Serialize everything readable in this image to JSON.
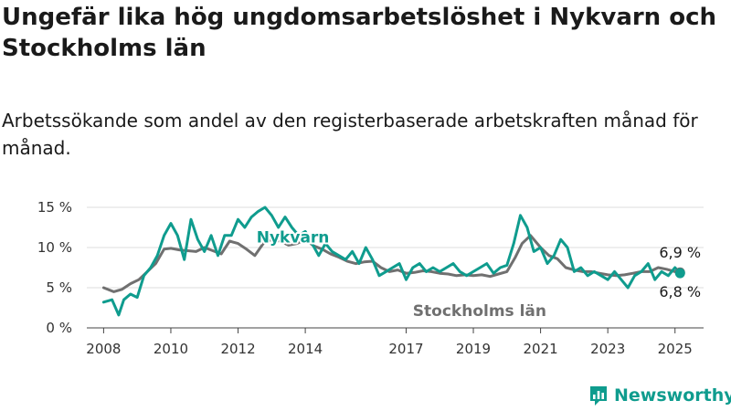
{
  "title": "Ungefär lika hög ungdomsarbetslöshet i Nykvarn och Stockholms län",
  "subtitle": "Arbetssökande som andel av den registerbaserade arbetskraften månad för månad.",
  "brand": {
    "name": "Newsworthy",
    "icon": "newsworthy-logo-icon",
    "color": "#0f9c8e"
  },
  "chart_data": {
    "type": "line",
    "x_unit": "year",
    "xlim": [
      2007.5,
      2025.85
    ],
    "ylim": [
      0,
      15
    ],
    "x_ticks": [
      2008,
      2010,
      2012,
      2014,
      2017,
      2019,
      2021,
      2023,
      2025
    ],
    "y_ticks": [
      0,
      5,
      10,
      15
    ],
    "y_tick_labels": [
      "0 %",
      "5 %",
      "10 %",
      "15 %"
    ],
    "grid": "horizontal",
    "legend": "inline labels",
    "series": [
      {
        "name": "Stockholms län",
        "color": "#707070",
        "x": [
          2008.0,
          2008.3,
          2008.55,
          2008.8,
          2009.05,
          2009.3,
          2009.55,
          2009.8,
          2010.0,
          2010.25,
          2010.5,
          2010.75,
          2011.0,
          2011.25,
          2011.5,
          2011.75,
          2012.0,
          2012.25,
          2012.5,
          2012.75,
          2013.0,
          2013.25,
          2013.5,
          2013.75,
          2014.0,
          2014.25,
          2014.5,
          2014.75,
          2015.0,
          2015.25,
          2015.5,
          2015.75,
          2016.0,
          2016.25,
          2016.5,
          2016.75,
          2017.0,
          2017.25,
          2017.5,
          2017.75,
          2018.0,
          2018.25,
          2018.5,
          2018.75,
          2019.0,
          2019.25,
          2019.5,
          2019.75,
          2020.0,
          2020.25,
          2020.45,
          2020.7,
          2021.0,
          2021.25,
          2021.5,
          2021.75,
          2022.0,
          2022.25,
          2022.5,
          2022.75,
          2023.0,
          2023.25,
          2023.5,
          2023.75,
          2024.0,
          2024.25,
          2024.5,
          2024.75,
          2025.0,
          2025.15
        ],
        "y": [
          5.0,
          4.5,
          4.8,
          5.5,
          6.0,
          7.0,
          8.0,
          9.8,
          9.9,
          9.7,
          9.6,
          9.5,
          10.0,
          9.6,
          9.2,
          10.8,
          10.5,
          9.8,
          9.0,
          10.5,
          11.0,
          10.8,
          10.3,
          10.5,
          11.0,
          10.2,
          9.8,
          9.2,
          8.8,
          8.3,
          8.0,
          8.2,
          8.3,
          7.5,
          7.0,
          7.2,
          6.8,
          6.9,
          7.1,
          7.0,
          6.8,
          6.7,
          6.5,
          6.6,
          6.5,
          6.6,
          6.4,
          6.7,
          7.0,
          8.8,
          10.5,
          11.5,
          10.0,
          9.0,
          8.6,
          7.5,
          7.2,
          7.0,
          7.0,
          6.8,
          6.6,
          6.5,
          6.6,
          6.8,
          7.0,
          7.0,
          7.5,
          7.3,
          7.0,
          6.9
        ]
      },
      {
        "name": "Nykvarn",
        "color": "#0f9c8e",
        "x": [
          2008.0,
          2008.25,
          2008.45,
          2008.6,
          2008.8,
          2009.0,
          2009.2,
          2009.4,
          2009.6,
          2009.8,
          2010.0,
          2010.2,
          2010.4,
          2010.6,
          2010.8,
          2011.0,
          2011.2,
          2011.4,
          2011.6,
          2011.8,
          2012.0,
          2012.2,
          2012.4,
          2012.6,
          2012.8,
          2013.0,
          2013.2,
          2013.4,
          2013.6,
          2013.8,
          2014.0,
          2014.2,
          2014.4,
          2014.6,
          2014.8,
          2015.0,
          2015.2,
          2015.4,
          2015.6,
          2015.8,
          2016.0,
          2016.2,
          2016.4,
          2016.6,
          2016.8,
          2017.0,
          2017.2,
          2017.4,
          2017.6,
          2017.8,
          2018.0,
          2018.2,
          2018.4,
          2018.6,
          2018.8,
          2019.0,
          2019.2,
          2019.4,
          2019.6,
          2019.8,
          2020.0,
          2020.2,
          2020.4,
          2020.6,
          2020.8,
          2021.0,
          2021.2,
          2021.4,
          2021.6,
          2021.8,
          2022.0,
          2022.2,
          2022.4,
          2022.6,
          2022.8,
          2023.0,
          2023.2,
          2023.4,
          2023.6,
          2023.8,
          2024.0,
          2024.2,
          2024.4,
          2024.6,
          2024.8,
          2025.0,
          2025.15
        ],
        "y": [
          3.2,
          3.5,
          1.6,
          3.5,
          4.2,
          3.8,
          6.5,
          7.5,
          9.0,
          11.5,
          13.0,
          11.5,
          8.5,
          13.5,
          11.0,
          9.5,
          11.5,
          9.0,
          11.5,
          11.5,
          13.5,
          12.5,
          13.8,
          14.5,
          15.0,
          14.0,
          12.5,
          13.8,
          12.5,
          11.5,
          12.0,
          10.5,
          9.0,
          10.5,
          9.5,
          9.0,
          8.5,
          9.5,
          8.0,
          10.0,
          8.5,
          6.5,
          7.0,
          7.5,
          8.0,
          6.0,
          7.5,
          8.0,
          7.0,
          7.5,
          7.0,
          7.5,
          8.0,
          7.0,
          6.5,
          7.0,
          7.5,
          8.0,
          6.8,
          7.5,
          7.8,
          10.5,
          14.0,
          12.5,
          9.5,
          10.0,
          8.0,
          9.0,
          11.0,
          10.0,
          7.0,
          7.5,
          6.5,
          7.0,
          6.5,
          6.0,
          7.0,
          6.0,
          5.0,
          6.5,
          7.0,
          8.0,
          6.0,
          7.0,
          6.5,
          7.5,
          6.8
        ]
      }
    ],
    "end_labels": [
      "6,9 %",
      "6,8 %"
    ]
  }
}
